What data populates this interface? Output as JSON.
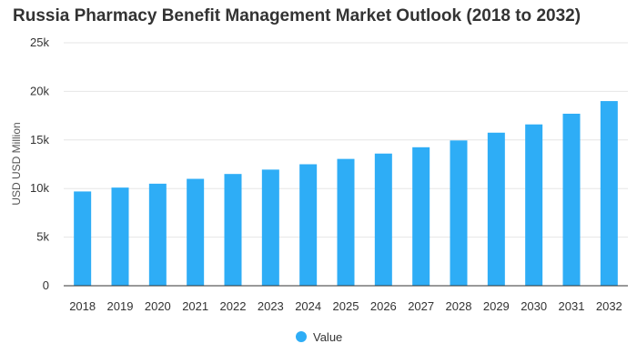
{
  "chart_data": {
    "type": "bar",
    "title": "Russia Pharmacy Benefit Management Market Outlook (2018 to 2032)",
    "ylabel": "USD USD Million",
    "xlabel": "",
    "categories": [
      "2018",
      "2019",
      "2020",
      "2021",
      "2022",
      "2023",
      "2024",
      "2025",
      "2026",
      "2027",
      "2028",
      "2029",
      "2030",
      "2031",
      "2032"
    ],
    "series": [
      {
        "name": "Value",
        "color": "#2eadf6",
        "values": [
          9700,
          10100,
          10500,
          11000,
          11500,
          11950,
          12500,
          13050,
          13600,
          14250,
          14950,
          15750,
          16600,
          17700,
          19000
        ]
      }
    ],
    "ylim": [
      0,
      25000
    ],
    "yticks": [
      {
        "value": 0,
        "label": "0"
      },
      {
        "value": 5000,
        "label": "5k"
      },
      {
        "value": 10000,
        "label": "10k"
      },
      {
        "value": 15000,
        "label": "15k"
      },
      {
        "value": 20000,
        "label": "20k"
      },
      {
        "value": 25000,
        "label": "25k"
      }
    ],
    "grid": true,
    "legend_position": "bottom-center",
    "colors": {
      "bar": "#2eadf6",
      "grid": "#e6e6e6",
      "axis": "#333333"
    }
  }
}
